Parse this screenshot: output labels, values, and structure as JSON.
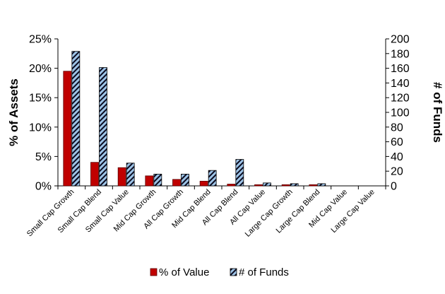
{
  "chart_data": {
    "type": "bar",
    "categories": [
      "Small Cap Growth",
      "Small Cap Blend",
      "Small Cap Value",
      "Mid Cap Growth",
      "All Cap Growth",
      "Mid Cap Blend",
      "All Cap Blend",
      "All Cap Value",
      "Large Cap Growth",
      "Large Cap Blend",
      "Mid Cap Value",
      "Large Cap Value"
    ],
    "series": [
      {
        "name": "% of Value",
        "axis": "left",
        "color": "#c00000",
        "values": [
          0.195,
          0.04,
          0.031,
          0.017,
          0.011,
          0.008,
          0.003,
          0.002,
          0.002,
          0.002,
          0.0,
          0.0
        ]
      },
      {
        "name": "# of Funds",
        "axis": "right",
        "color": "#9dc3e6",
        "pattern": "diagonal-stripes",
        "values": [
          183,
          161,
          31,
          16,
          16,
          21,
          36,
          4,
          3,
          3,
          0,
          0
        ]
      }
    ],
    "ylabel": "% of Assets",
    "y2label": "# of Funds",
    "ylim": [
      0,
      0.25
    ],
    "y2lim": [
      0,
      200
    ],
    "yticks": [
      "0%",
      "5%",
      "10%",
      "15%",
      "20%",
      "25%"
    ],
    "y2ticks": [
      "0",
      "20",
      "40",
      "60",
      "80",
      "100",
      "120",
      "140",
      "160",
      "180",
      "200"
    ],
    "legend_position": "bottom"
  }
}
